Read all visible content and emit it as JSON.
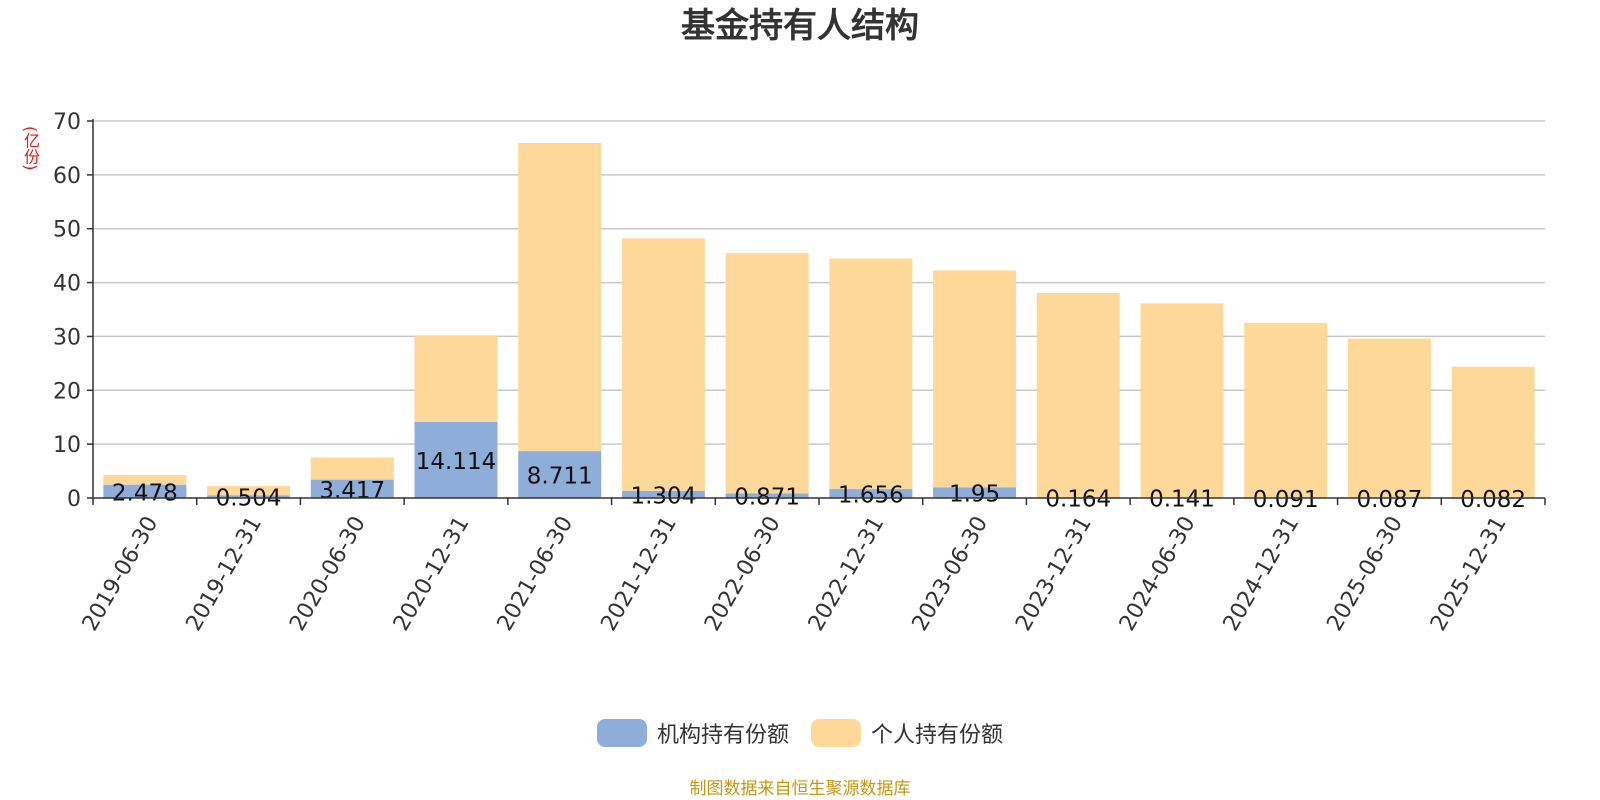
{
  "colors": {
    "institutional": "#8eadd9",
    "individual": "#fed898",
    "source_note": "#c8960f",
    "y_unit": "#e01a1a"
  },
  "chart_data": {
    "type": "bar",
    "stacked": true,
    "title": "基金持有人结构",
    "ylabel": "(亿份)",
    "xlabel": "",
    "ylim": [
      0,
      70
    ],
    "yticks": [
      0,
      10,
      20,
      30,
      40,
      50,
      60,
      70
    ],
    "grid": true,
    "legend_position": "bottom",
    "categories": [
      "2019-06-30",
      "2019-12-31",
      "2020-06-30",
      "2020-12-31",
      "2021-06-30",
      "2021-12-31",
      "2022-06-30",
      "2022-12-31",
      "2023-06-30",
      "2023-12-31",
      "2024-06-30",
      "2024-12-31",
      "2025-06-30",
      "2025-12-31"
    ],
    "series": [
      {
        "name": "机构持有份额",
        "values": [
          2.478,
          0.504,
          3.417,
          14.114,
          8.711,
          1.304,
          0.871,
          1.656,
          1.95,
          0.164,
          0.141,
          0.091,
          0.087,
          0.082
        ],
        "labels": [
          "2.478",
          "0.504",
          "3.417",
          "14.114",
          "8.711",
          "1.304",
          "0.871",
          "1.656",
          "1.95",
          "0.164",
          "0.141",
          "0.091",
          "0.087",
          "0.082"
        ]
      },
      {
        "name": "个人持有份额",
        "values": [
          1.8,
          1.7,
          4.1,
          16.1,
          57.2,
          46.9,
          44.6,
          42.8,
          40.3,
          37.9,
          36.0,
          32.4,
          29.5,
          24.3
        ]
      }
    ]
  },
  "source_note": "制图数据来自恒生聚源数据库"
}
